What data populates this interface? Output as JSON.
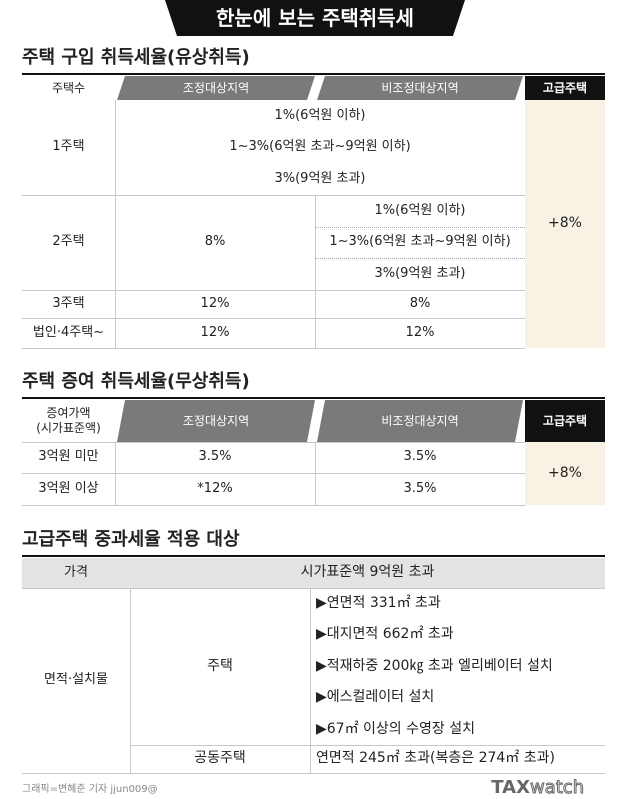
{
  "header": {
    "title": "한눈에 보는 주택취득세"
  },
  "purchase": {
    "title": "주택 구입 취득세율(유상취득)",
    "columns": [
      "주택수",
      "조정대상지역",
      "비조정대상지역",
      "고급주택"
    ],
    "rows": [
      {
        "label": "1주택",
        "common": [
          "1%(6억원 이하)",
          "1~3%(6억원 초과~9억원 이하)",
          "3%(9억원 초과)"
        ]
      },
      {
        "label": "2주택",
        "adjusted": "8%",
        "non_adjusted": [
          "1%(6억원 이하)",
          "1~3%(6억원 초과~9억원 이하)",
          "3%(9억원 초과)"
        ]
      },
      {
        "label": "3주택",
        "adjusted": "12%",
        "non_adjusted": "8%"
      },
      {
        "label": "법인·4주택~",
        "adjusted": "12%",
        "non_adjusted": "12%"
      }
    ],
    "luxury": "+8%"
  },
  "gift": {
    "title": "주택 증여 취득세율(무상취득)",
    "columns": [
      "증여가액\n(시가표준액)",
      "조정대상지역",
      "비조정대상지역",
      "고급주택"
    ],
    "rows": [
      {
        "label": "3억원 미만",
        "adjusted": "3.5%",
        "non_adjusted": "3.5%"
      },
      {
        "label": "3억원 이상",
        "adjusted": "*12%",
        "non_adjusted": "3.5%"
      }
    ],
    "luxury": "+8%"
  },
  "luxury_criteria": {
    "title": "고급주택 중과세율 적용 대상",
    "price_label": "가격",
    "price_value": "시가표준액 9억원 초과",
    "area_label": "면적·설치물",
    "house_label": "주택",
    "house_items": [
      "▶연면적 331㎡ 초과",
      "▶대지면적 662㎡ 초과",
      "▶적재하중 200㎏ 초과 엘리베이터 설치",
      "▶에스컬레이터 설치",
      "▶67㎡ 이상의 수영장 설치"
    ],
    "apartment_label": "공동주택",
    "apartment_value": "연면적 245㎡ 초과(복층은 274㎡ 초과)"
  },
  "footer": {
    "credit": "그래픽=변혜준 기자 jjun009@",
    "logo_bold": "TAX",
    "logo_light": "watch"
  }
}
